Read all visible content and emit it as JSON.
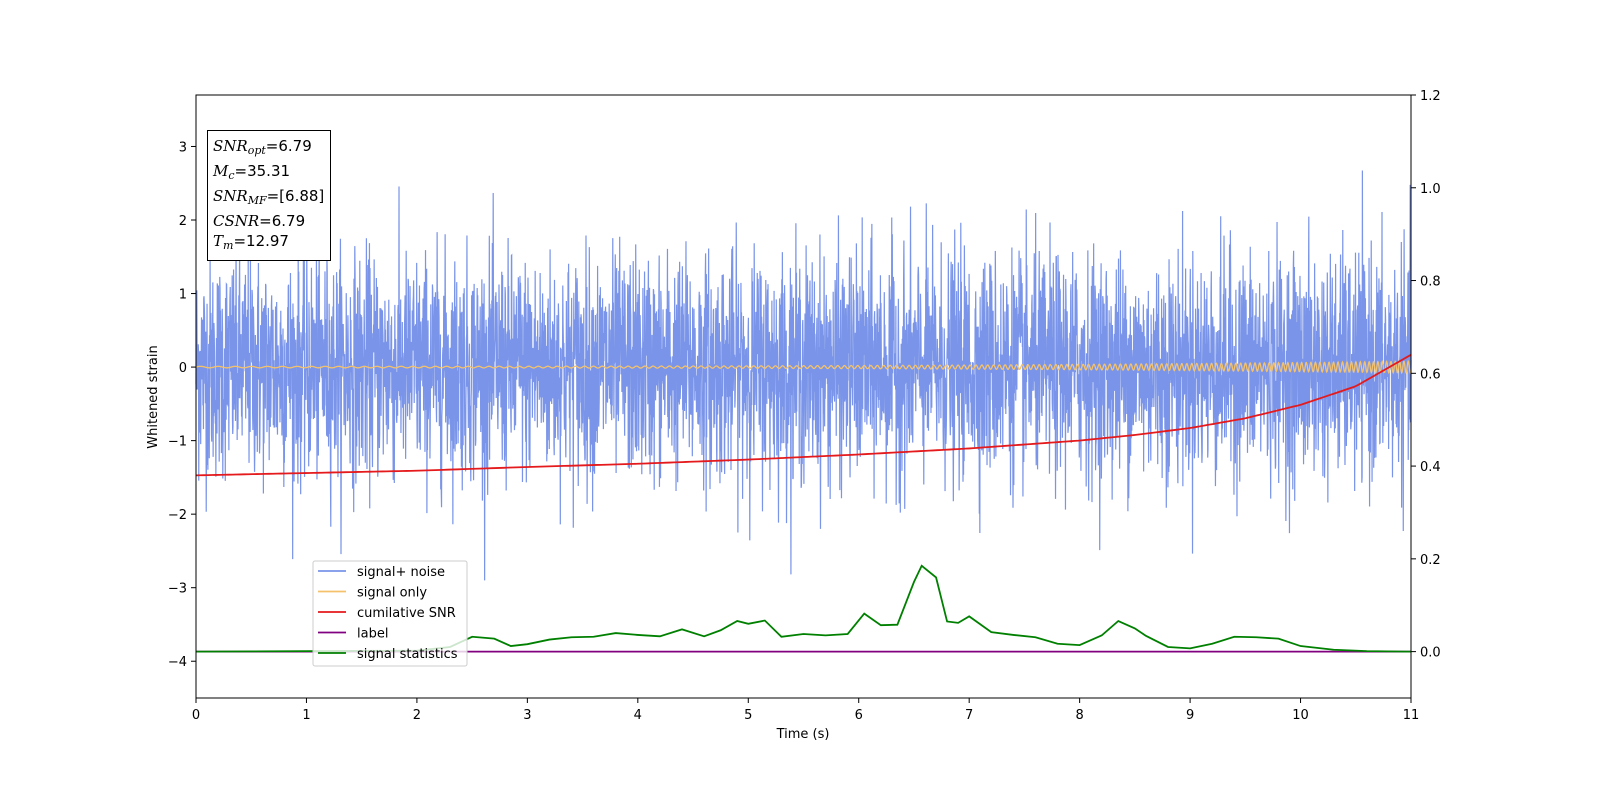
{
  "chart_data": {
    "type": "line",
    "title": "",
    "xlabel": "Time (s)",
    "ylabel": "Whitened strain",
    "ylabel_right": "",
    "xlim": [
      0,
      11
    ],
    "ylim": [
      -4.5,
      3.7
    ],
    "ylim_right": [
      -0.1,
      1.2
    ],
    "x_ticks": [
      0,
      1,
      2,
      3,
      4,
      5,
      6,
      7,
      8,
      9,
      10,
      11
    ],
    "y_ticks": [
      -4,
      -3,
      -2,
      -1,
      0,
      1,
      2,
      3
    ],
    "y_ticks_right": [
      0.0,
      0.2,
      0.4,
      0.6,
      0.8,
      1.0,
      1.2
    ],
    "x_tick_labels": [
      "0",
      "1",
      "2",
      "3",
      "4",
      "5",
      "6",
      "7",
      "8",
      "9",
      "10",
      "11"
    ],
    "y_tick_labels": [
      "−4",
      "−3",
      "−2",
      "−1",
      "0",
      "1",
      "2",
      "3"
    ],
    "y_tick_labels_right": [
      "0.0",
      "0.2",
      "0.4",
      "0.6",
      "0.8",
      "1.0",
      "1.2"
    ],
    "grid": false,
    "legend_position": "lower-left",
    "series": [
      {
        "name": "signal+ noise",
        "color": "#7994e8",
        "axis": "left",
        "style": "noise",
        "amplitude_std": 0.75,
        "max_abs": 2.9
      },
      {
        "name": "signal only",
        "color": "#f5c26b",
        "axis": "left",
        "style": "chirp",
        "amplitude_start": 0.01,
        "amplitude_end": 0.08
      },
      {
        "name": "cumilative SNR",
        "color": "#e41a1c",
        "axis": "right",
        "x": [
          0,
          1,
          2,
          3,
          4,
          5,
          6,
          7,
          8,
          8.5,
          9,
          9.5,
          10,
          10.5,
          11
        ],
        "y": [
          0.38,
          0.385,
          0.39,
          0.398,
          0.405,
          0.414,
          0.425,
          0.438,
          0.455,
          0.467,
          0.482,
          0.503,
          0.532,
          0.572,
          0.64
        ]
      },
      {
        "name": "label",
        "color": "#800080",
        "axis": "right",
        "x": [
          0,
          11
        ],
        "y": [
          0.0,
          0.0
        ]
      },
      {
        "name": "signal statistics",
        "color": "#008000",
        "axis": "right",
        "x": [
          0,
          2,
          2.3,
          2.5,
          2.7,
          2.85,
          3.0,
          3.2,
          3.4,
          3.6,
          3.8,
          4.0,
          4.2,
          4.4,
          4.6,
          4.75,
          4.9,
          5.0,
          5.15,
          5.3,
          5.5,
          5.7,
          5.9,
          6.05,
          6.2,
          6.35,
          6.5,
          6.57,
          6.7,
          6.8,
          6.9,
          7.0,
          7.2,
          7.4,
          7.6,
          7.8,
          8.0,
          8.2,
          8.35,
          8.5,
          8.6,
          8.8,
          9.0,
          9.2,
          9.4,
          9.6,
          9.8,
          10.0,
          10.3,
          10.6,
          11.0
        ],
        "y": [
          0.0,
          0.002,
          0.01,
          0.032,
          0.028,
          0.012,
          0.016,
          0.026,
          0.031,
          0.032,
          0.04,
          0.036,
          0.033,
          0.048,
          0.033,
          0.046,
          0.066,
          0.06,
          0.067,
          0.032,
          0.038,
          0.035,
          0.038,
          0.082,
          0.057,
          0.058,
          0.15,
          0.185,
          0.16,
          0.065,
          0.062,
          0.076,
          0.042,
          0.036,
          0.031,
          0.017,
          0.014,
          0.035,
          0.066,
          0.05,
          0.034,
          0.01,
          0.007,
          0.017,
          0.032,
          0.031,
          0.028,
          0.012,
          0.004,
          0.001,
          0.0
        ]
      }
    ]
  },
  "annotation": {
    "snr_opt": {
      "sym": "SNR",
      "sub": "opt",
      "value": "=6.79"
    },
    "mc": {
      "sym": "M",
      "sub": "c",
      "value": "=35.31"
    },
    "snr_mf": {
      "sym": "SNR",
      "sub": "MF",
      "value": "=[6.88]"
    },
    "csnr": {
      "sym": "CSNR",
      "value": "=6.79"
    },
    "tm": {
      "sym": "T",
      "sub": "m",
      "value": "=12.97"
    }
  }
}
